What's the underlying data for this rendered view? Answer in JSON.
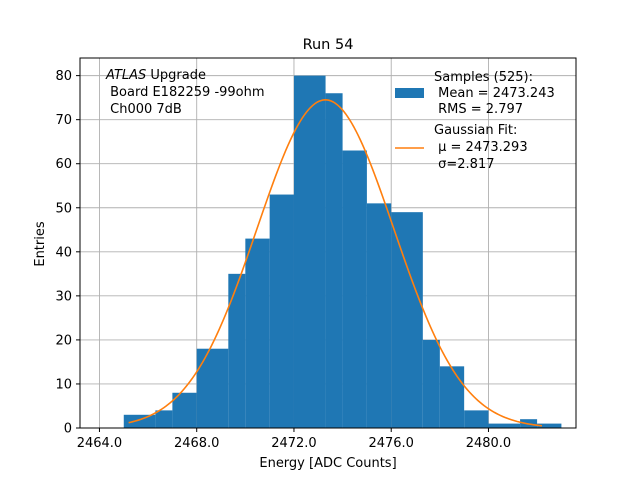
{
  "chart_data": {
    "type": "bar",
    "title": "Run 54",
    "xlabel": "Energy [ADC Counts]",
    "ylabel": "Entries",
    "xlim": [
      2463.2,
      2483.6
    ],
    "ylim": [
      0,
      84
    ],
    "xticks": [
      2464.0,
      2468.0,
      2472.0,
      2476.0,
      2480.0
    ],
    "xtick_labels": [
      "2464.0",
      "2468.0",
      "2472.0",
      "2476.0",
      "2480.0"
    ],
    "yticks": [
      0,
      10,
      20,
      30,
      40,
      50,
      60,
      70,
      80
    ],
    "ytick_labels": [
      "0",
      "10",
      "20",
      "30",
      "40",
      "50",
      "60",
      "70",
      "80"
    ],
    "grid": true,
    "histogram": {
      "bin_edges": [
        2465.0,
        2466.3,
        2467.0,
        2468.0,
        2469.3,
        2470.0,
        2471.0,
        2472.0,
        2473.3,
        2474.0,
        2475.0,
        2476.0,
        2477.3,
        2478.0,
        2479.0,
        2480.0,
        2481.3,
        2482.0,
        2483.0
      ],
      "counts": [
        3,
        4,
        8,
        18,
        35,
        43,
        53,
        80,
        76,
        63,
        51,
        49,
        20,
        14,
        4,
        1,
        2,
        1
      ],
      "color": "#1f77b4"
    },
    "gaussian_fit": {
      "mu": 2473.293,
      "sigma": 2.817,
      "amplitude": 74.5,
      "x_range": [
        2465.2,
        2482.2
      ],
      "color": "#ff7f0e"
    },
    "legend": {
      "placement": "top-right",
      "entries": [
        {
          "lines": [
            "Samples (525):",
            " Mean = 2473.243",
            " RMS = 2.797"
          ],
          "kind": "patch"
        },
        {
          "lines": [
            "Gaussian Fit:",
            " μ = 2473.293",
            " σ=2.817"
          ],
          "kind": "line"
        }
      ]
    },
    "annotation": {
      "italic": "ATLAS",
      "rest": " Upgrade",
      "lines": [
        " Board E182259 -99ohm",
        " Ch000 7dB"
      ]
    }
  }
}
